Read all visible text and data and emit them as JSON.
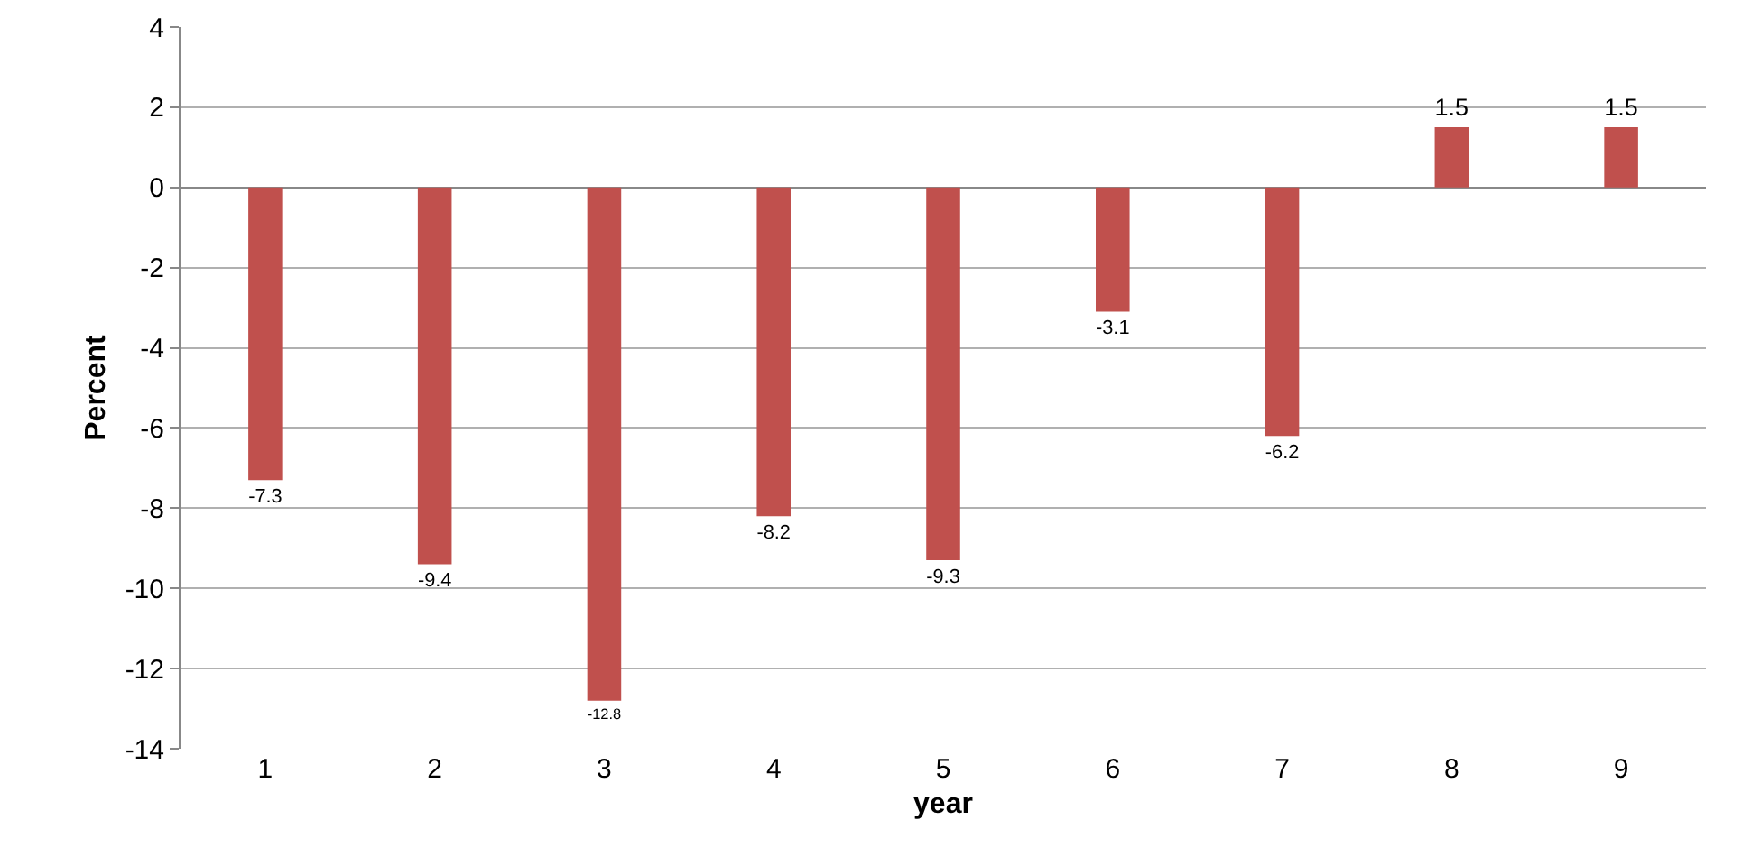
{
  "chart_data": {
    "type": "bar",
    "xlabel": "year",
    "ylabel": "Percent",
    "categories": [
      "1",
      "2",
      "3",
      "4",
      "5",
      "6",
      "7",
      "8",
      "9"
    ],
    "values": [
      -7.3,
      -9.4,
      -12.8,
      -8.2,
      -9.3,
      -3.1,
      -6.2,
      1.5,
      1.5
    ],
    "color": "#c0504d",
    "ylim": [
      -14,
      4
    ],
    "yticks": [
      -14,
      -12,
      -10,
      -8,
      -6,
      -4,
      -2,
      0,
      2,
      4
    ],
    "grid": "y",
    "data_labels": true
  }
}
